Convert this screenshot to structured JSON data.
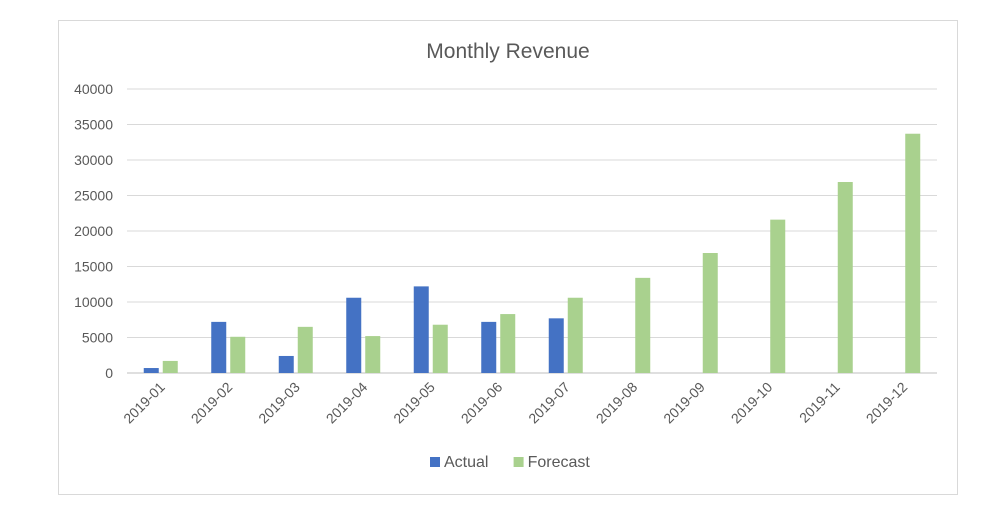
{
  "chart_data": {
    "type": "bar",
    "title": "Monthly Revenue",
    "xlabel": "",
    "ylabel": "",
    "categories": [
      "2019-01",
      "2019-02",
      "2019-03",
      "2019-04",
      "2019-05",
      "2019-06",
      "2019-07",
      "2019-08",
      "2019-09",
      "2019-10",
      "2019-11",
      "2019-12"
    ],
    "series": [
      {
        "name": "Actual",
        "color": "#4472c4",
        "values": [
          700,
          7200,
          2400,
          10600,
          12200,
          7200,
          7700,
          null,
          null,
          null,
          null,
          null
        ]
      },
      {
        "name": "Forecast",
        "color": "#a9d18e",
        "values": [
          1700,
          5100,
          6500,
          5200,
          6800,
          8300,
          10600,
          13400,
          16900,
          21600,
          26900,
          33700
        ]
      }
    ],
    "ylim": [
      0,
      40000
    ],
    "yticks": [
      0,
      5000,
      10000,
      15000,
      20000,
      25000,
      30000,
      35000,
      40000
    ],
    "grid": true,
    "legend_position": "bottom"
  }
}
